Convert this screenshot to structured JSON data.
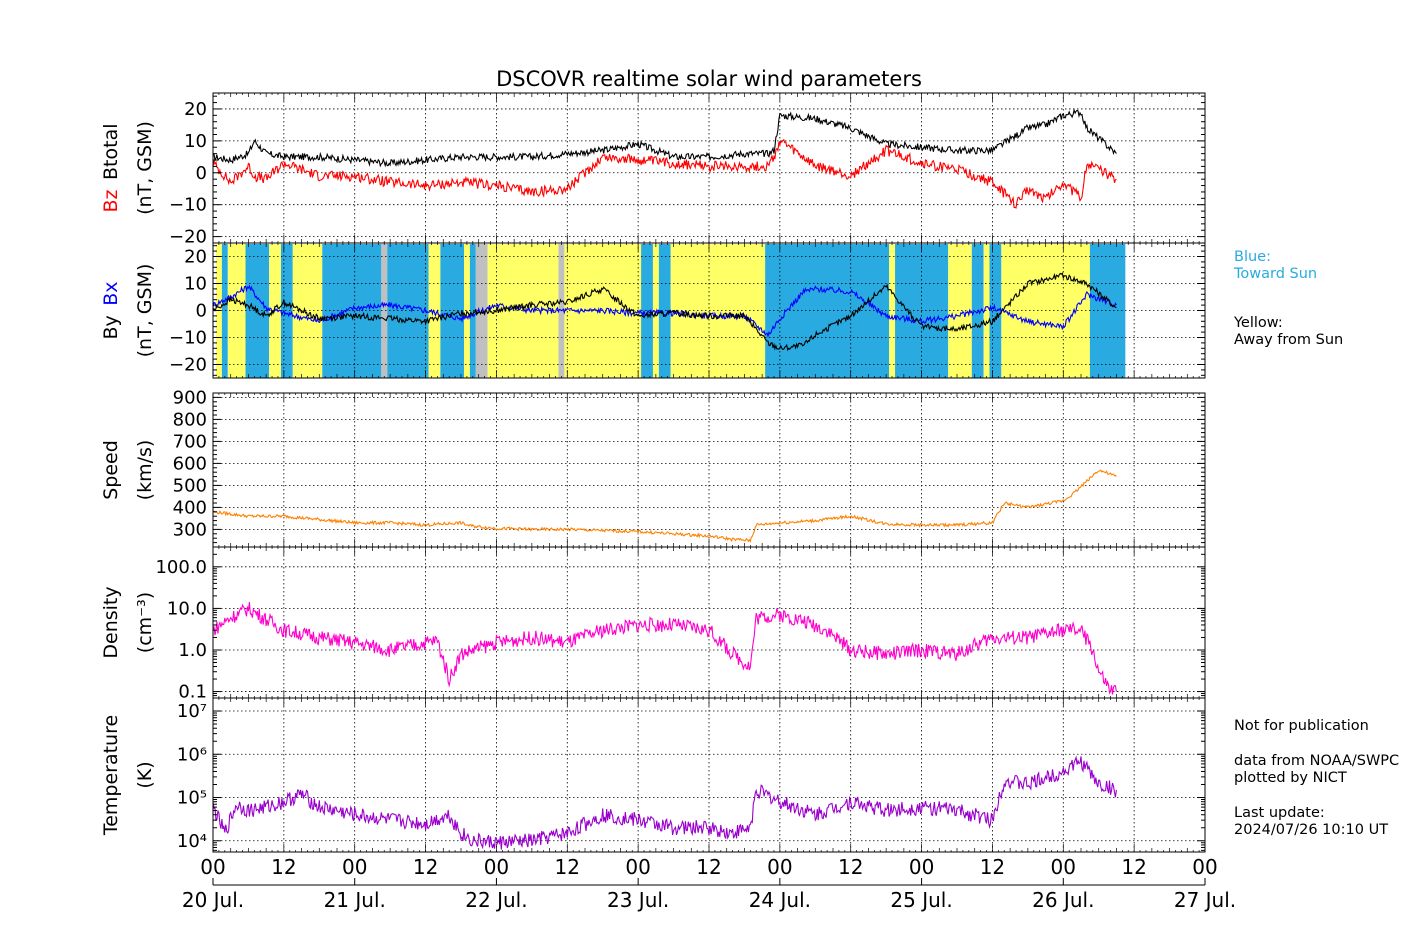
{
  "title": "DSCOVR realtime solar wind parameters",
  "colors": {
    "bz": "#ff0000",
    "bt": "#000000",
    "bx": "#0000ff",
    "by": "#000000",
    "speed": "#ff8000",
    "density": "#ff00cc",
    "temperature": "#9900cc",
    "toward": "#29abe2",
    "away": "#ffff66",
    "gap": "#c0c0c0"
  },
  "legend": {
    "blue_label": "Blue:",
    "blue_desc": "Toward Sun",
    "yellow_label": "Yellow:",
    "yellow_desc": "Away from Sun"
  },
  "notes": {
    "not_for_pub": "Not for publication",
    "source1": "data from NOAA/SWPC",
    "source2": "plotted by NICT",
    "update_label": "Last update:",
    "update_time": "2024/07/26 10:10 UT"
  },
  "chart_data": [
    {
      "type": "line",
      "panel": "magnetic-field-total",
      "ylabel": [
        "Bz",
        "Btotal",
        "(nT, GSM)"
      ],
      "ylim": [
        -22,
        25
      ],
      "yticks": [
        -20,
        -10,
        0,
        10,
        20
      ],
      "grid": true,
      "x_range_hours": [
        0,
        168
      ],
      "series": [
        {
          "name": "Btotal",
          "x": [
            0,
            3,
            6,
            7,
            9,
            12,
            18,
            24,
            30,
            36,
            42,
            48,
            54,
            60,
            66,
            72,
            78,
            84,
            90,
            94,
            95,
            96,
            102,
            108,
            114,
            120,
            126,
            132,
            138,
            141,
            144,
            147,
            148,
            153
          ],
          "y": [
            5,
            4,
            6,
            10,
            6,
            5,
            5,
            4,
            3,
            4,
            5,
            5,
            5,
            6,
            7,
            9,
            5,
            5,
            6,
            6,
            7,
            18,
            17,
            14,
            9,
            8,
            7,
            7,
            14,
            15,
            18,
            19,
            14,
            6
          ]
        },
        {
          "name": "Bz",
          "x": [
            0,
            3,
            6,
            7,
            9,
            12,
            18,
            24,
            30,
            36,
            42,
            48,
            54,
            60,
            66,
            72,
            78,
            84,
            90,
            94,
            95,
            96,
            102,
            108,
            114,
            120,
            126,
            132,
            136,
            138,
            141,
            144,
            147,
            148,
            153
          ],
          "y": [
            3,
            -3,
            2,
            -1,
            -2,
            3,
            -1,
            -1,
            -3,
            -4,
            -3,
            -4,
            -6,
            -5,
            5,
            4,
            3,
            2,
            2,
            2,
            5,
            10,
            2,
            -1,
            7,
            3,
            1,
            -3,
            -10,
            -5,
            -8,
            -3,
            -8,
            3,
            -2
          ]
        }
      ]
    },
    {
      "type": "line",
      "panel": "magnetic-field-xy",
      "ylabel": [
        "By",
        "Bx",
        "(nT, GSM)"
      ],
      "ylim": [
        -25,
        25
      ],
      "yticks": [
        -20,
        -10,
        0,
        10,
        20
      ],
      "grid": true,
      "x_range_hours": [
        0,
        168
      ],
      "series": [
        {
          "name": "Bx",
          "x": [
            0,
            3,
            6,
            9,
            12,
            18,
            24,
            30,
            36,
            42,
            48,
            54,
            60,
            66,
            72,
            78,
            84,
            90,
            94,
            96,
            100,
            102,
            108,
            114,
            120,
            126,
            132,
            138,
            144,
            148,
            153
          ],
          "y": [
            2,
            5,
            9,
            1,
            -1,
            -4,
            1,
            2,
            0,
            -3,
            2,
            0,
            0,
            0,
            -1,
            -1,
            -2,
            -2,
            -9,
            -3,
            7,
            8,
            7,
            -2,
            -4,
            -2,
            1,
            -4,
            -6,
            6,
            2
          ]
        },
        {
          "name": "By",
          "x": [
            0,
            3,
            6,
            9,
            12,
            18,
            24,
            30,
            36,
            42,
            48,
            54,
            60,
            66,
            72,
            78,
            84,
            90,
            94,
            96,
            100,
            102,
            108,
            114,
            120,
            126,
            132,
            138,
            144,
            148,
            153
          ],
          "y": [
            0,
            4,
            2,
            -2,
            3,
            -3,
            -2,
            -3,
            -4,
            -1,
            0,
            2,
            3,
            8,
            -2,
            -1,
            -2,
            -2,
            -12,
            -14,
            -13,
            -9,
            -2,
            9,
            -6,
            -7,
            -4,
            10,
            13,
            10,
            1
          ]
        }
      ],
      "sectors": [
        {
          "start": 0,
          "end": 1,
          "value": "away"
        },
        {
          "start": 1,
          "end": 2,
          "value": "toward"
        },
        {
          "start": 2,
          "end": 5,
          "value": "away"
        },
        {
          "start": 5,
          "end": 9,
          "value": "toward"
        },
        {
          "start": 9,
          "end": 11,
          "value": "away"
        },
        {
          "start": 11,
          "end": 13,
          "value": "toward"
        },
        {
          "start": 13,
          "end": 18,
          "value": "away"
        },
        {
          "start": 18,
          "end": 28,
          "value": "toward"
        },
        {
          "start": 28,
          "end": 29,
          "value": "gap"
        },
        {
          "start": 29,
          "end": 36,
          "value": "toward"
        },
        {
          "start": 36,
          "end": 38,
          "value": "away"
        },
        {
          "start": 38,
          "end": 42,
          "value": "toward"
        },
        {
          "start": 42,
          "end": 43,
          "value": "away"
        },
        {
          "start": 43,
          "end": 44,
          "value": "toward"
        },
        {
          "start": 44,
          "end": 46,
          "value": "gap"
        },
        {
          "start": 46,
          "end": 58,
          "value": "away"
        },
        {
          "start": 58,
          "end": 59,
          "value": "gap"
        },
        {
          "start": 59,
          "end": 72,
          "value": "away"
        },
        {
          "start": 72,
          "end": 74,
          "value": "toward"
        },
        {
          "start": 74,
          "end": 75,
          "value": "away"
        },
        {
          "start": 75,
          "end": 77,
          "value": "toward"
        },
        {
          "start": 77,
          "end": 93,
          "value": "away"
        },
        {
          "start": 93,
          "end": 114,
          "value": "toward"
        },
        {
          "start": 114,
          "end": 115,
          "value": "away"
        },
        {
          "start": 115,
          "end": 124,
          "value": "toward"
        },
        {
          "start": 124,
          "end": 128,
          "value": "away"
        },
        {
          "start": 128,
          "end": 130,
          "value": "toward"
        },
        {
          "start": 130,
          "end": 131,
          "value": "away"
        },
        {
          "start": 131,
          "end": 133,
          "value": "toward"
        },
        {
          "start": 133,
          "end": 148,
          "value": "away"
        },
        {
          "start": 148,
          "end": 154,
          "value": "toward"
        }
      ]
    },
    {
      "type": "line",
      "panel": "speed",
      "ylabel": [
        "Speed",
        "(km/s)"
      ],
      "ylim": [
        220,
        920
      ],
      "yticks": [
        300,
        400,
        500,
        600,
        700,
        800,
        900
      ],
      "grid": true,
      "x_range_hours": [
        0,
        168
      ],
      "series": [
        {
          "name": "Speed",
          "x": [
            0,
            6,
            12,
            18,
            24,
            30,
            36,
            42,
            43,
            44,
            48,
            54,
            60,
            66,
            72,
            78,
            84,
            88,
            91,
            92,
            96,
            102,
            108,
            114,
            120,
            126,
            132,
            134,
            138,
            144,
            146,
            150,
            153
          ],
          "y": [
            380,
            360,
            360,
            345,
            330,
            330,
            320,
            330,
            320,
            315,
            305,
            300,
            300,
            295,
            290,
            280,
            270,
            255,
            250,
            320,
            330,
            340,
            360,
            325,
            320,
            320,
            330,
            420,
            400,
            430,
            470,
            570,
            540
          ]
        }
      ]
    },
    {
      "type": "line",
      "panel": "density",
      "ylabel": [
        "Density",
        "(cm⁻³)"
      ],
      "ylog": true,
      "ylim": [
        0.07,
        300
      ],
      "yticks": [
        0.1,
        1.0,
        10.0,
        100.0
      ],
      "ytick_labels": [
        "0.1",
        "1.0",
        "10.0",
        "100.0"
      ],
      "grid": true,
      "x_range_hours": [
        0,
        168
      ],
      "series": [
        {
          "name": "Density",
          "x": [
            0,
            3,
            6,
            12,
            18,
            24,
            30,
            36,
            38,
            40,
            42,
            44,
            48,
            54,
            60,
            66,
            72,
            78,
            84,
            88,
            91,
            92,
            96,
            100,
            104,
            108,
            114,
            120,
            126,
            132,
            138,
            144,
            147,
            149,
            150,
            152,
            153
          ],
          "y": [
            3,
            6,
            10,
            3,
            2,
            1.5,
            1,
            1.5,
            1.7,
            0.2,
            0.8,
            1,
            1.5,
            2,
            1.5,
            3,
            4,
            4,
            3,
            0.8,
            0.4,
            6,
            7,
            5,
            3,
            1,
            0.8,
            1,
            0.8,
            2,
            2,
            3,
            3,
            1,
            0.3,
            0.1,
            0.1
          ]
        }
      ]
    },
    {
      "type": "line",
      "panel": "temperature",
      "ylabel": [
        "Temperature",
        "(K)"
      ],
      "ylog": true,
      "ylim": [
        5500,
        20000000
      ],
      "yticks": [
        10000,
        100000,
        1000000,
        10000000
      ],
      "ytick_labels": [
        "10⁴",
        "10⁵",
        "10⁶",
        "10⁷"
      ],
      "grid": true,
      "x_range_hours": [
        0,
        168
      ],
      "series": [
        {
          "name": "Temperature",
          "x": [
            0,
            2,
            4,
            6,
            9,
            12,
            15,
            18,
            24,
            30,
            36,
            40,
            42,
            44,
            48,
            54,
            60,
            66,
            72,
            78,
            84,
            88,
            91,
            92,
            96,
            102,
            108,
            114,
            120,
            126,
            132,
            134,
            138,
            144,
            147,
            150,
            153
          ],
          "y": [
            60000,
            15000,
            70000,
            50000,
            60000,
            80000,
            120000,
            60000,
            40000,
            30000,
            25000,
            40000,
            15000,
            10000,
            9000,
            10000,
            15000,
            40000,
            30000,
            20000,
            20000,
            15000,
            20000,
            150000,
            80000,
            40000,
            80000,
            50000,
            60000,
            50000,
            30000,
            250000,
            200000,
            400000,
            700000,
            200000,
            150000
          ]
        }
      ]
    }
  ],
  "x_axis": {
    "hour_labels": [
      "00",
      "12",
      "00",
      "12",
      "00",
      "12",
      "00",
      "12",
      "00",
      "12",
      "00",
      "12",
      "00",
      "12",
      "00"
    ],
    "day_labels": [
      "20 Jul.",
      "21 Jul.",
      "22 Jul.",
      "23 Jul.",
      "24 Jul.",
      "25 Jul.",
      "26 Jul.",
      "27 Jul."
    ]
  }
}
